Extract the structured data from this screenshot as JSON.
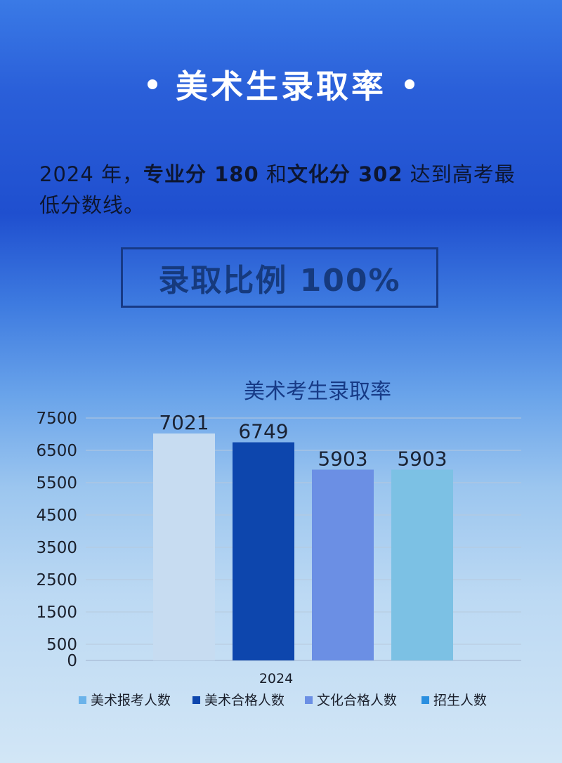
{
  "header": {
    "title": "美术生录取率"
  },
  "description": {
    "p1": "2024 年，",
    "p2": "专业分 180",
    "p3": " 和",
    "p4": "文化分 302",
    "p5": " 达到高考最低分数线。"
  },
  "ratio": {
    "text": "录取比例 100%"
  },
  "colors": {
    "bar_report": "#c7dcf1",
    "bar_art_pass": "#0d46ad",
    "bar_culture_pass": "#6b8fe4",
    "bar_enroll": "#7cc1e4",
    "legend_report": "#6bb3ea",
    "legend_enroll": "#2a8fe0"
  },
  "chart_data": {
    "type": "bar",
    "title": "美术考生录取率",
    "categories": [
      "2024"
    ],
    "series": [
      {
        "name": "美术报考人数",
        "values": [
          7021
        ]
      },
      {
        "name": "美术合格人数",
        "values": [
          6749
        ]
      },
      {
        "name": "文化合格人数",
        "values": [
          5903
        ]
      },
      {
        "name": "招生人数",
        "values": [
          5903
        ]
      }
    ],
    "yticks": [
      "7500",
      "6500",
      "5500",
      "4500",
      "3500",
      "2500",
      "1500",
      "500",
      "0"
    ],
    "ylim": [
      0,
      7500
    ],
    "grid": true,
    "legend": "bottom"
  }
}
